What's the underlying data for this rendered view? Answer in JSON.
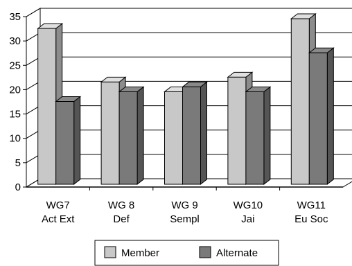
{
  "chart_data": {
    "type": "bar",
    "categories": [
      {
        "line1": "WG7",
        "line2": "Act Ext"
      },
      {
        "line1": "WG 8",
        "line2": "Def"
      },
      {
        "line1": "WG 9",
        "line2": "Sempl"
      },
      {
        "line1": "WG10",
        "line2": "Jai"
      },
      {
        "line1": "WG11",
        "line2": "Eu Soc"
      }
    ],
    "series": [
      {
        "name": "Member",
        "values": [
          32,
          21,
          19,
          22,
          34
        ],
        "color": "#c8c8c8"
      },
      {
        "name": "Alternate",
        "values": [
          17,
          19,
          20,
          19,
          27
        ],
        "color": "#7a7a7a"
      }
    ],
    "y_ticks": [
      "0",
      "5",
      "10",
      "15",
      "20",
      "25",
      "30",
      "35"
    ],
    "ylim": [
      0,
      35
    ],
    "title": "",
    "xlabel": "",
    "ylabel": "",
    "grid": true,
    "legend_position": "bottom"
  }
}
